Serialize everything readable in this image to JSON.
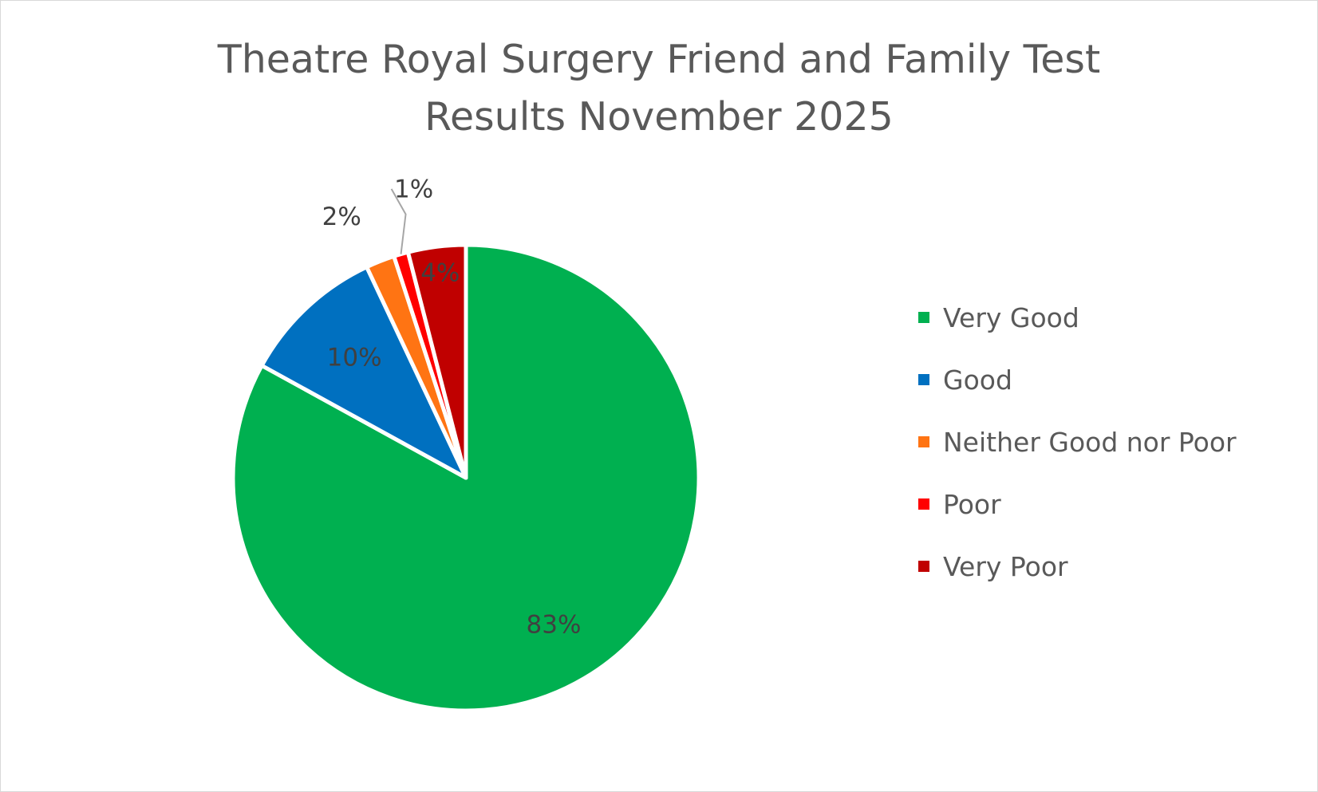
{
  "chart_data": {
    "type": "pie",
    "title_lines": [
      "Theatre Royal Surgery Friend and Family Test",
      "Results November 2025"
    ],
    "categories": [
      "Very Good",
      "Good",
      "Neither Good nor Poor",
      "Poor",
      "Very Poor"
    ],
    "values": [
      83,
      10,
      2,
      1,
      4
    ],
    "labels": [
      "83%",
      "10%",
      "2%",
      "1%",
      "4%"
    ],
    "colors": [
      "#00b050",
      "#0070c0",
      "#ff7413",
      "#ff0000",
      "#c00000"
    ],
    "legend_position": "right"
  }
}
